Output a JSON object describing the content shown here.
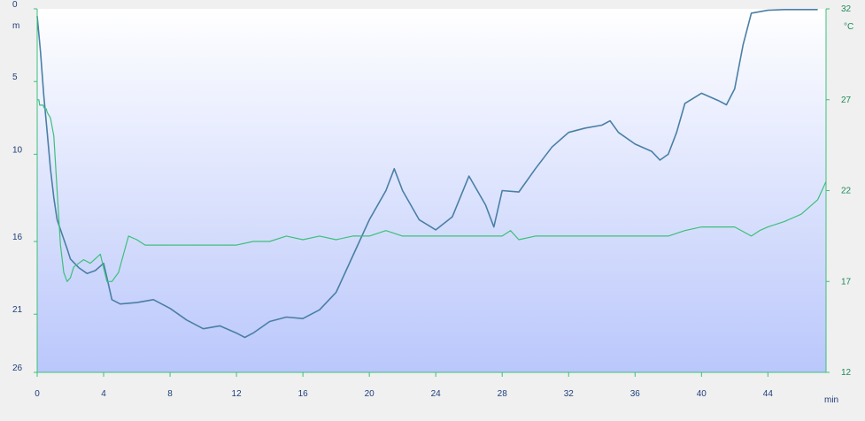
{
  "chart_data": {
    "type": "line",
    "title": "",
    "xlabel": "min",
    "x_ticks": [
      0,
      4,
      8,
      12,
      16,
      20,
      24,
      28,
      32,
      36,
      40,
      44
    ],
    "xlim": [
      0,
      47.5
    ],
    "y_left": {
      "unit": "m",
      "ticks": [
        0,
        5,
        10,
        16,
        21,
        26
      ],
      "range": [
        0,
        25
      ],
      "inverted": true
    },
    "y_right": {
      "unit": "°C",
      "ticks": [
        32,
        27,
        22,
        17,
        12
      ],
      "range": [
        12,
        32
      ]
    },
    "grid": false,
    "legend": "none",
    "colors": {
      "depth": "#4a7fa5",
      "temperature": "#3dbf7a",
      "plot_top": "#ffffff",
      "plot_bottom": "#bac7fb",
      "axis": "#3dbf7a",
      "page_bg": "#f0f0f0"
    },
    "series": [
      {
        "key": "depth",
        "axis": "left",
        "x": [
          0,
          0.2,
          0.4,
          0.6,
          0.8,
          1.0,
          1.2,
          1.5,
          1.8,
          2.0,
          2.5,
          3.0,
          3.5,
          4.0,
          4.2,
          4.5,
          5.0,
          6.0,
          7.0,
          8.0,
          9.0,
          10.0,
          11.0,
          12.0,
          12.5,
          13.0,
          14.0,
          15.0,
          16.0,
          17.0,
          18.0,
          19.0,
          20.0,
          21.0,
          21.5,
          22.0,
          23.0,
          24.0,
          25.0,
          26.0,
          27.0,
          27.5,
          28.0,
          29.0,
          30.0,
          31.0,
          32.0,
          33.0,
          34.0,
          34.5,
          35.0,
          36.0,
          37.0,
          37.5,
          38.0,
          38.5,
          39.0,
          40.0,
          41.0,
          41.5,
          42.0,
          42.5,
          43.0,
          44.0,
          45.0,
          46.0,
          47.0
        ],
        "y": [
          0.5,
          3.0,
          6.0,
          8.5,
          11.0,
          13.0,
          14.5,
          15.5,
          16.5,
          17.2,
          17.8,
          18.2,
          18.0,
          17.5,
          18.5,
          20.0,
          20.3,
          20.2,
          20.0,
          20.6,
          21.4,
          22.0,
          21.8,
          22.3,
          22.6,
          22.3,
          21.5,
          21.2,
          21.3,
          20.7,
          19.5,
          17.0,
          14.5,
          12.5,
          11.0,
          12.5,
          14.5,
          15.2,
          14.3,
          11.5,
          13.5,
          15.0,
          12.5,
          12.6,
          11.0,
          9.5,
          8.5,
          8.2,
          8.0,
          7.7,
          8.5,
          9.3,
          9.8,
          10.4,
          10.0,
          8.5,
          6.5,
          5.8,
          6.3,
          6.6,
          5.5,
          2.5,
          0.3,
          0.1,
          0.05,
          0.05,
          0.05
        ]
      },
      {
        "key": "temperature",
        "axis": "right",
        "x": [
          0,
          0.1,
          0.15,
          0.35,
          0.45,
          0.55,
          0.6,
          0.8,
          1.0,
          1.2,
          1.4,
          1.6,
          1.8,
          2.0,
          2.2,
          2.5,
          2.8,
          3.2,
          3.8,
          4.2,
          4.5,
          4.9,
          5.2,
          5.5,
          6.0,
          6.5,
          7.0,
          8.0,
          9.0,
          10.0,
          11.0,
          12.0,
          13.0,
          14.0,
          15.0,
          16.0,
          17.0,
          18.0,
          19.0,
          20.0,
          21.0,
          22.0,
          23.0,
          24.0,
          25.0,
          26.0,
          27.0,
          28.0,
          28.5,
          29.0,
          30.0,
          31.0,
          32.0,
          34.0,
          36.0,
          38.0,
          39.0,
          40.0,
          42.0,
          43.0,
          43.5,
          44.0,
          45.0,
          46.0,
          47.0,
          47.5
        ],
        "y": [
          27.0,
          27.0,
          26.7,
          26.7,
          26.5,
          26.5,
          26.3,
          26.0,
          25.0,
          22.0,
          19.0,
          17.5,
          17.0,
          17.2,
          17.8,
          18.0,
          18.2,
          18.0,
          18.5,
          17.0,
          17.0,
          17.5,
          18.5,
          19.5,
          19.3,
          19.0,
          19.0,
          19.0,
          19.0,
          19.0,
          19.0,
          19.0,
          19.2,
          19.2,
          19.5,
          19.3,
          19.5,
          19.3,
          19.5,
          19.5,
          19.8,
          19.5,
          19.5,
          19.5,
          19.5,
          19.5,
          19.5,
          19.5,
          19.8,
          19.3,
          19.5,
          19.5,
          19.5,
          19.5,
          19.5,
          19.5,
          19.8,
          20.0,
          20.0,
          19.5,
          19.8,
          20.0,
          20.3,
          20.7,
          21.5,
          22.5
        ]
      }
    ]
  }
}
